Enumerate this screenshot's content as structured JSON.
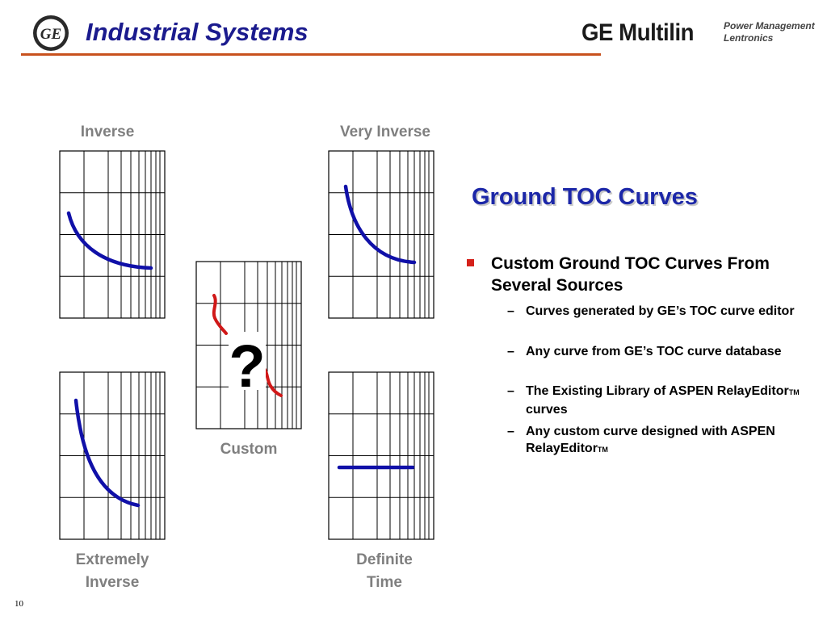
{
  "header": {
    "title": "Industrial Systems",
    "logo_text": "GE",
    "brand": "GE Multilin",
    "brand_sub": [
      "Power Management",
      "Lentronics"
    ]
  },
  "curves": {
    "inverse": "Inverse",
    "very_inverse": "Very Inverse",
    "custom": "Custom",
    "custom_mark": "?",
    "extremely_inverse": [
      "Extremely",
      "Inverse"
    ],
    "definite_time": [
      "Definite",
      "Time"
    ]
  },
  "content": {
    "heading": "Ground TOC Curves",
    "bullet": "Custom Ground TOC Curves From Several Sources",
    "dash": "–",
    "sub_bullets": [
      "Curves generated by GE’s TOC curve editor",
      "Any curve from GE’s TOC curve database",
      "The Existing Library of ASPEN RelayEditor",
      "Any custom curve designed with ASPEN RelayEditor"
    ],
    "sub_bullet_3_tail": "curves",
    "tm": "TM"
  },
  "footer": {
    "slide_number": "10"
  },
  "colors": {
    "title": "#1b1b8e",
    "rule": "#c8511d",
    "curve": "#1010a8",
    "custom_curve": "#d01818",
    "heading": "#1c27a8",
    "bullet": "#d5211a"
  }
}
